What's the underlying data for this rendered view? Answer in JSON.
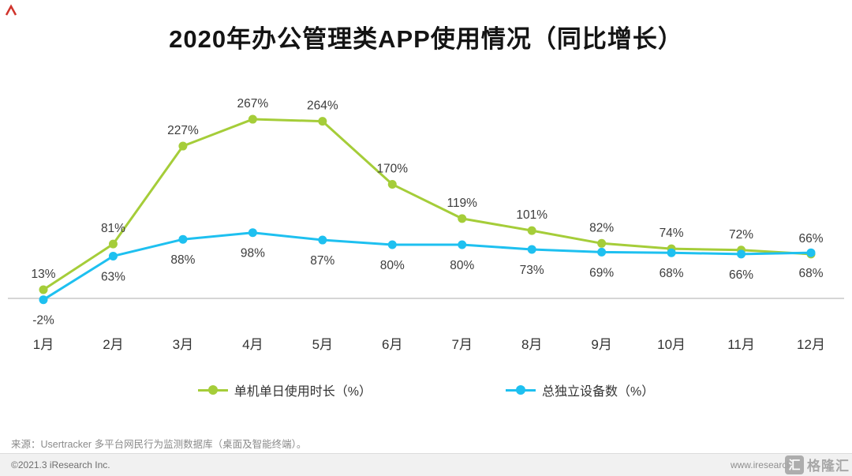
{
  "title": "2020年办公管理类APP使用情况（同比增长）",
  "chart_data": {
    "type": "line",
    "unit": "%",
    "categories": [
      "1月",
      "2月",
      "3月",
      "4月",
      "5月",
      "6月",
      "7月",
      "8月",
      "9月",
      "10月",
      "11月",
      "12月"
    ],
    "series": [
      {
        "name": "单机单日使用时长（%）",
        "color": "#a5cd39",
        "values": [
          13,
          81,
          227,
          267,
          264,
          170,
          119,
          101,
          82,
          74,
          72,
          66
        ]
      },
      {
        "name": "总独立设备数（%）",
        "color": "#1ec0f0",
        "values": [
          -2,
          63,
          88,
          98,
          87,
          80,
          80,
          73,
          69,
          68,
          66,
          68
        ]
      }
    ],
    "xlabel": "",
    "ylabel": "",
    "ylim": [
      -30,
      300
    ],
    "grid": false,
    "legend_position": "bottom",
    "data_labels": true,
    "axis_line_color": "#c9c9c9"
  },
  "source_note": "来源：Usertracker 多平台网民行为监测数据库（桌面及智能终端）。",
  "footer": {
    "copyright": "©2021.3 iResearch Inc.",
    "website": "www.iresearch"
  },
  "watermark": {
    "icon": "汇",
    "label": "格隆汇"
  }
}
